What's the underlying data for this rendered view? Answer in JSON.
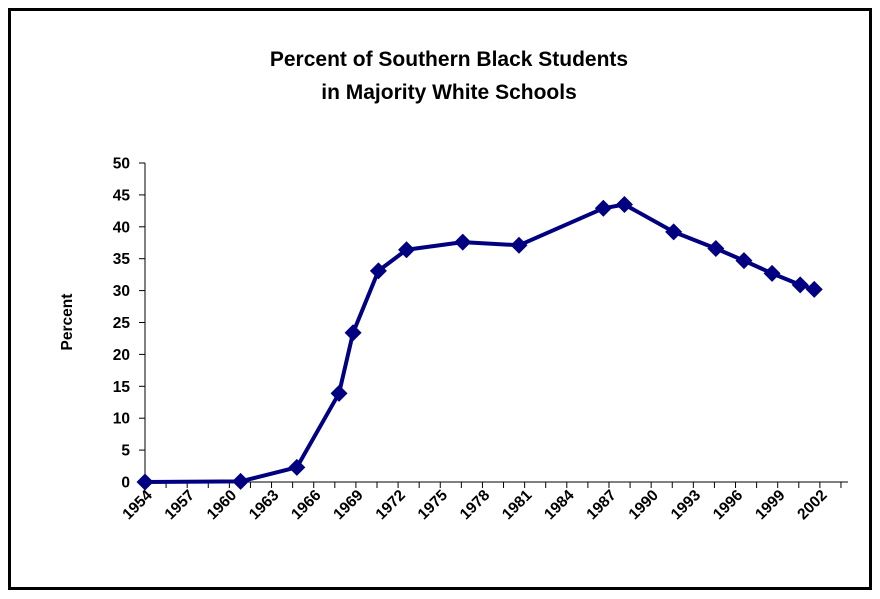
{
  "chart_data": {
    "type": "line",
    "title_lines": [
      "Percent of Southern Black Students",
      "in Majority White Schools"
    ],
    "xlabel": "",
    "ylabel": "Percent",
    "ylim": [
      0,
      50
    ],
    "yticks": [
      0,
      5,
      10,
      15,
      20,
      25,
      30,
      35,
      40,
      45,
      50
    ],
    "xlim": [
      1954,
      2004
    ],
    "xticks": [
      1954,
      1957,
      1960,
      1963,
      1966,
      1969,
      1972,
      1975,
      1978,
      1981,
      1984,
      1987,
      1990,
      1993,
      1996,
      1999,
      2002
    ],
    "grid": false,
    "legend": "none",
    "series": [
      {
        "color": "#000080",
        "x": [
          1954,
          1960.8,
          1964.8,
          1967.8,
          1968.8,
          1970.6,
          1972.6,
          1976.6,
          1980.6,
          1986.6,
          1988.1,
          1991.6,
          1994.6,
          1996.6,
          1998.6,
          2000.6,
          2001.6
        ],
        "y": [
          0,
          0.1,
          2.3,
          13.9,
          23.4,
          33.1,
          36.4,
          37.6,
          37.1,
          42.9,
          43.5,
          39.2,
          36.6,
          34.7,
          32.7,
          30.9,
          30.2
        ]
      }
    ]
  }
}
